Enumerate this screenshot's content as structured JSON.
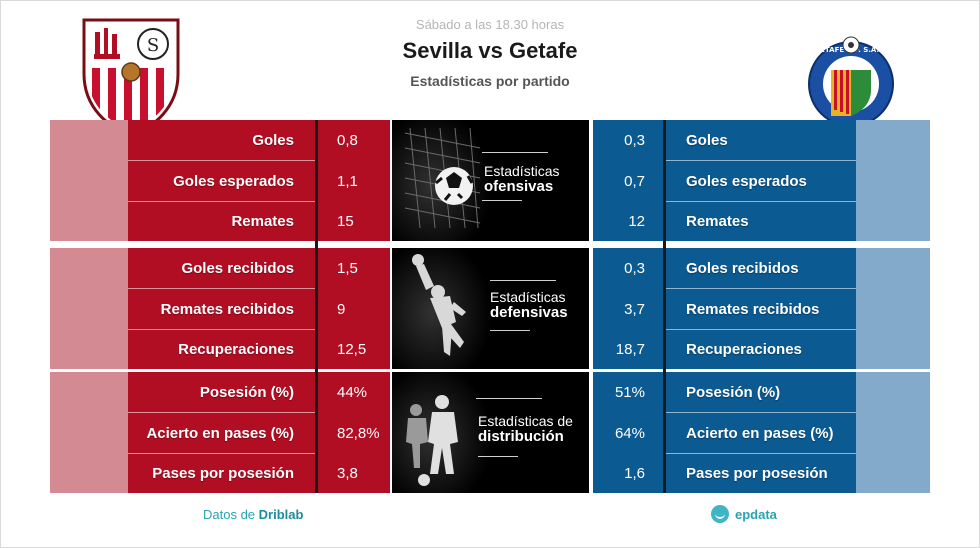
{
  "header": {
    "subtitle": "Sábado a las 18.30 horas",
    "title": "Sevilla vs Getafe",
    "description": "Estadísticas por partido"
  },
  "home_team": {
    "name": "Sevilla",
    "crest_icon": "sevilla-crest-icon",
    "color": "#b10e23",
    "fade_color": "#d38a92"
  },
  "away_team": {
    "name": "Getafe",
    "crest_icon": "getafe-crest-icon",
    "color": "#0b5a92",
    "fade_color": "#84aacb"
  },
  "sections": [
    {
      "title_line1": "Estadísticas",
      "title_line2": "ofensivas",
      "icon": "soccer-ball-net-icon",
      "rows": [
        {
          "label": "Goles",
          "home": "0,8",
          "away": "0,3"
        },
        {
          "label": "Goles esperados",
          "home": "1,1",
          "away": "0,7"
        },
        {
          "label": "Remates",
          "home": "15",
          "away": "12"
        }
      ]
    },
    {
      "title_line1": "Estadísticas",
      "title_line2": "defensivas",
      "icon": "goalkeeper-icon",
      "rows": [
        {
          "label": "Goles recibidos",
          "home": "1,5",
          "away": "0,3"
        },
        {
          "label": "Remates recibidos",
          "home": "9",
          "away": "3,7"
        },
        {
          "label": "Recuperaciones",
          "home": "12,5",
          "away": "18,7"
        }
      ]
    },
    {
      "title_line1": "Estadísticas de",
      "title_line2": "distribución",
      "icon": "players-icon",
      "rows": [
        {
          "label": "Posesión (%)",
          "home": "44%",
          "away": "51%"
        },
        {
          "label": "Acierto en pases (%)",
          "home": "82,8%",
          "away": "64%"
        },
        {
          "label": "Pases por posesión",
          "home": "3,8",
          "away": "1,6"
        }
      ]
    }
  ],
  "footer": {
    "source_prefix": "Datos de",
    "source_name": "Driblab",
    "brand": "epdata",
    "brand_icon": "epdata-logo-icon"
  }
}
